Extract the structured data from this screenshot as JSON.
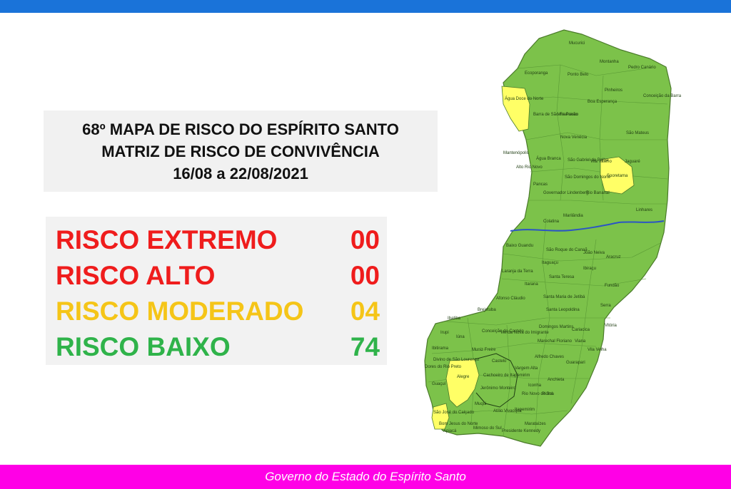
{
  "colors": {
    "top_bar": "#1a73d9",
    "footer": "#ff00e6",
    "extremo": "#ef1c1c",
    "alto": "#ef1c1c",
    "moderado": "#f5c518",
    "baixo": "#2fb34a",
    "map_green": "#7cc24a",
    "map_yellow": "#ffff66",
    "river": "#2b55c4"
  },
  "title": {
    "line1": "68º MAPA DE RISCO DO ESPÍRITO SANTO",
    "line2": "MATRIZ DE RISCO DE CONVIVÊNCIA",
    "line3": "16/08 a 22/08/2021"
  },
  "risk": {
    "extremo": {
      "label": "RISCO EXTREMO",
      "count": "00"
    },
    "alto": {
      "label": "RISCO ALTO",
      "count": "00"
    },
    "moderado": {
      "label": "RISCO MODERADO",
      "count": "04"
    },
    "baixo": {
      "label": "RISCO BAIXO",
      "count": "74"
    }
  },
  "map": {
    "yellow_municipalities": [
      "Água Doce do Norte",
      "Sooretama",
      "Alegre",
      "São José do Calçado"
    ],
    "places": {
      "mucurici": "Mucurici",
      "montanha": "Montanha",
      "pedro_canario": "Pedro Canário",
      "ecoporanga": "Ecoporanga",
      "ponto_belo": "Ponto Belo",
      "pinheiros": "Pinheiros",
      "conceicao_barra": "Conceição da Barra",
      "agua_doce": "Água Doce do Norte",
      "barra_sao_francisco": "Barra de São Francisco",
      "vila_pavao": "Vila Pavão",
      "boa_esperanca": "Boa Esperança",
      "sao_mateus": "São Mateus",
      "nova_venecia": "Nova Venécia",
      "mantenopolis": "Mantenópolis",
      "agua_branca": "Água Branca",
      "sao_gabriel": "São Gabriel da Palha",
      "vila_valerio": "Vila Valério",
      "jaguare": "Jaguaré",
      "alto_rio_novo": "Alto Rio Novo",
      "sooretama": "Sooretama",
      "pancas": "Pancas",
      "sao_domingos": "São Domingos do Norte",
      "governador_lindenberg": "Governador Lindenberg",
      "rio_bananal": "Rio Bananal",
      "linhares": "Linhares",
      "marilandia": "Marilândia",
      "colatina": "Colatina",
      "baixo_guandu": "Baixo Guandu",
      "sao_roque": "São Roque do Canaã",
      "joao_neiva": "João Neiva",
      "aracruz": "Aracruz",
      "itaguacu": "Itaguaçu",
      "ibiracu": "Ibiraçu",
      "laranja_terra": "Laranja da Terra",
      "santa_teresa": "Santa Teresa",
      "fundao": "Fundão",
      "itarana": "Itarana",
      "afonso_claudio": "Afonso Cláudio",
      "santa_maria": "Santa Maria de Jetibá",
      "serra": "Serra",
      "santa_leopoldina": "Santa Leopoldina",
      "brejetuba": "Brejetuba",
      "ibatiba": "Ibatiba",
      "domingos_martins": "Domingos Martins",
      "vitoria": "Vitória",
      "conceicao_castelo": "Conceição do Castelo",
      "venda_nova": "Venda Nova do Imigrante",
      "cariacica": "Cariacica",
      "irupi": "Irupi",
      "iuna": "Iúna",
      "marechal_floriano": "Marechal Floriano",
      "viana": "Viana",
      "vila_velha": "Vila Velha",
      "ibitirama": "Ibitirama",
      "muniz_freire": "Muniz Freire",
      "castelo": "Castelo",
      "alfredo_chaves": "Alfredo Chaves",
      "guarapari": "Guarapari",
      "divino": "Divino de São Lourenço",
      "dores_rio_preto": "Dores do Rio Preto",
      "alegre": "Alegre",
      "cachoeiro": "Cachoeiro de Itapemirim",
      "vargem_alta": "Vargem Alta",
      "guacui": "Guaçuí",
      "jeronimo_monteiro": "Jerônimo Monteiro",
      "iconha": "Iconha",
      "anchieta": "Anchieta",
      "rio_novo_sul": "Rio Novo do Sul",
      "piuma": "Piúma",
      "muqui": "Muqui",
      "atilio_vivacqua": "Atílio Vivacqua",
      "itapemirim": "Itapemirim",
      "sao_jose_calcado": "São José do Calçado",
      "bom_jesus": "Bom Jesus do Norte",
      "apiaca": "Apiacá",
      "mimoso_sul": "Mimoso do Sul",
      "presidente_kennedy": "Presidente Kennedy",
      "marataizes": "Marataízes"
    }
  },
  "footer": {
    "text": "Governo do Estado do Espírito Santo"
  }
}
